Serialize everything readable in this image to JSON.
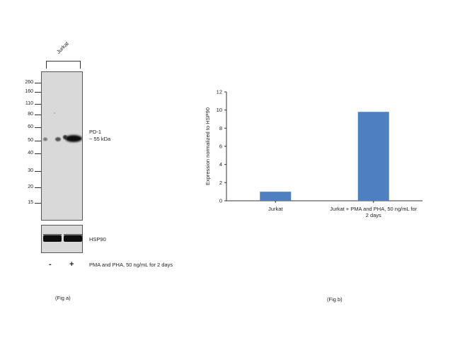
{
  "fig_a": {
    "lane_label": "Jurkat",
    "mw_markers": [
      "260",
      "160",
      "110",
      "80",
      "60",
      "50",
      "40",
      "30",
      "20",
      "15"
    ],
    "band_label_line1": "PD-1",
    "band_label_line2": "~ 55 kDa",
    "loading_control": "HSP90",
    "treatment_signs": [
      "-",
      "+"
    ],
    "treatment_label": "PMA and PHA, 50 ng/mL for 2 days",
    "caption": "(Fig a)"
  },
  "fig_b": {
    "caption": "(Fig b)"
  },
  "chart_data": {
    "type": "bar",
    "categories": [
      "Jurkat",
      "Jurkat + PMA and PHA, 50 ng/mL for 2 days"
    ],
    "category_lines": [
      [
        "Jurkat"
      ],
      [
        "Jurkat + PMA and PHA, 50 ng/mL for",
        "2 days"
      ]
    ],
    "values": [
      1.0,
      9.8
    ],
    "title": "",
    "xlabel": "",
    "ylabel": "Expression normalized to HSP90",
    "ylim": [
      0,
      12
    ],
    "yticks": [
      "0",
      "2",
      "4",
      "6",
      "8",
      "10",
      "12"
    ],
    "bar_color": "#4e7fbf",
    "grid": false
  }
}
